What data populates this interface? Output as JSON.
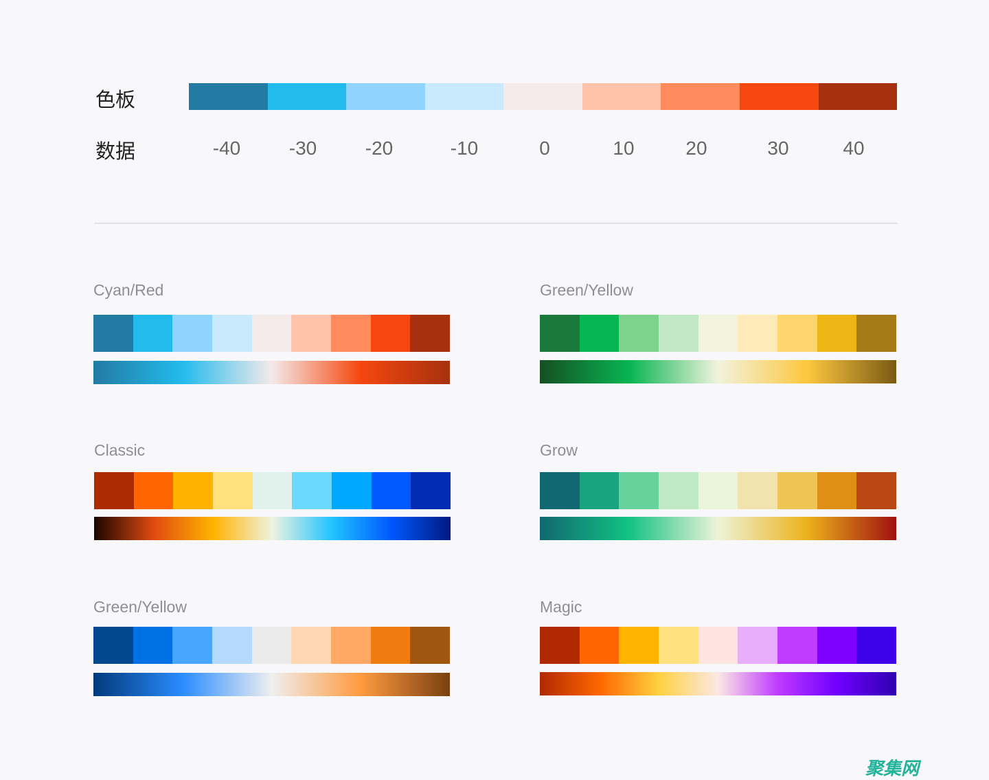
{
  "legend": {
    "swatch_label": "色板",
    "data_label": "数据",
    "colors": [
      "#237ba3",
      "#22bbec",
      "#8fd4fe",
      "#c9e9fc",
      "#f4eaea",
      "#ffc2aa",
      "#ff8a5c",
      "#f5470f",
      "#a6310e"
    ],
    "values": [
      "-40",
      "-30",
      "-20",
      "-10",
      "0",
      "10",
      "20",
      "30",
      "40"
    ]
  },
  "palettes": [
    {
      "name": "Cyan/Red",
      "colors": [
        "#237ba3",
        "#22bbec",
        "#8fd4fe",
        "#c9e9fc",
        "#f4eaea",
        "#ffc2aa",
        "#ff8a5c",
        "#f5470f",
        "#a6310e"
      ],
      "gradient": [
        "#237ba3",
        "#22bbec",
        "#f4eaea",
        "#f5470f",
        "#a6310e"
      ]
    },
    {
      "name": "Green/Yellow",
      "colors": [
        "#1b7a3b",
        "#07b552",
        "#7ed38c",
        "#c1e9c4",
        "#f1f3dd",
        "#feeab8",
        "#fed46f",
        "#eeb614",
        "#a57a17"
      ],
      "gradient": [
        "#164f22",
        "#07b552",
        "#f1f3dd",
        "#fdc73f",
        "#7a5a14"
      ]
    },
    {
      "name": "Classic",
      "colors": [
        "#ad2b00",
        "#ff6500",
        "#ffb300",
        "#ffe07d",
        "#e1f2ec",
        "#6bd9fe",
        "#00a8ff",
        "#0059ff",
        "#002db4"
      ],
      "gradient": [
        "#1a0600",
        "#e04a10",
        "#ffb300",
        "#eef3e0",
        "#20c4ff",
        "#0058ff",
        "#001a80"
      ]
    },
    {
      "name": "Grow",
      "colors": [
        "#116870",
        "#19a37e",
        "#67d29b",
        "#c0eac5",
        "#eaf5d9",
        "#f0e3ae",
        "#f0c452",
        "#e08f16",
        "#b94711"
      ],
      "gradient": [
        "#116870",
        "#12c283",
        "#eef3d8",
        "#ebb21a",
        "#a01010"
      ]
    },
    {
      "name": "Green/Yellow",
      "colors": [
        "#03478e",
        "#0071e4",
        "#49a6ff",
        "#b6dafd",
        "#ebebeb",
        "#ffd6b2",
        "#ffa964",
        "#ee7c10",
        "#a05511"
      ],
      "gradient": [
        "#023a7a",
        "#2a8cff",
        "#efefef",
        "#ff9a40",
        "#7a4010"
      ]
    },
    {
      "name": "Magic",
      "colors": [
        "#b02900",
        "#ff6600",
        "#ffb400",
        "#ffe07e",
        "#ffe4e0",
        "#e8adfb",
        "#c03cff",
        "#8000ff",
        "#3d00e8"
      ],
      "gradient": [
        "#b02900",
        "#ff6600",
        "#ffd040",
        "#fbe8e4",
        "#c03cff",
        "#7000ff",
        "#3000b0"
      ]
    }
  ],
  "watermark": "聚集网"
}
